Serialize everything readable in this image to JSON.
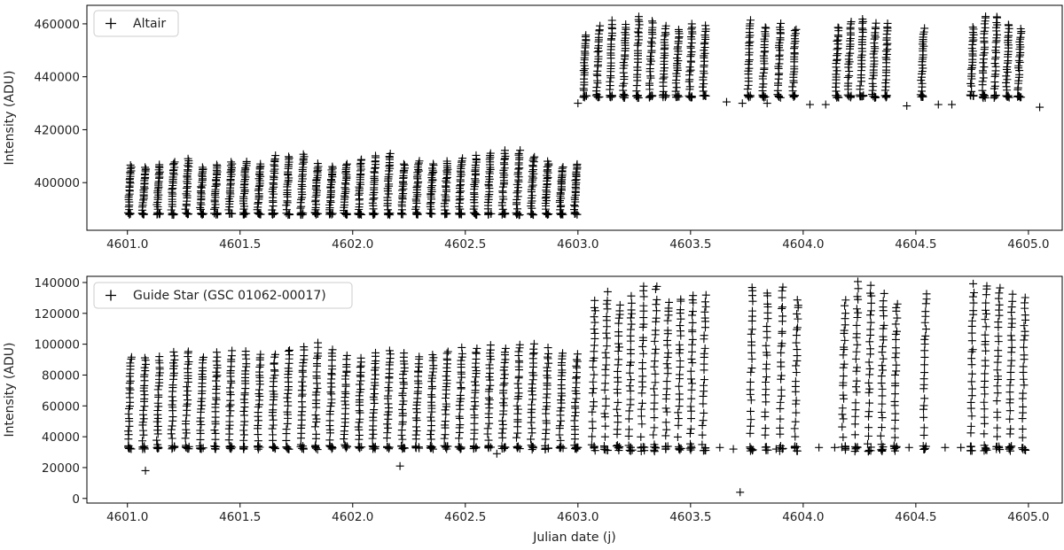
{
  "figure": {
    "background": "#ffffff",
    "marker_color": "#000000"
  },
  "chart_data": [
    {
      "type": "scatter",
      "marker": "+",
      "title": "",
      "xlabel": "",
      "ylabel": "Intensity (ADU)",
      "xlim": [
        4600.82,
        4605.15
      ],
      "ylim": [
        382000,
        467000
      ],
      "xticks": [
        4601.0,
        4601.5,
        4602.0,
        4602.5,
        4603.0,
        4603.5,
        4604.0,
        4604.5,
        4605.0
      ],
      "xtick_labels": [
        "4601.0",
        "4601.5",
        "4602.0",
        "4602.5",
        "4603.0",
        "4603.5",
        "4604.0",
        "4604.5",
        "4605.0"
      ],
      "yticks": [
        400000,
        420000,
        440000,
        460000
      ],
      "ytick_labels": [
        "400000",
        "420000",
        "440000",
        "460000"
      ],
      "legend": {
        "label": "Altair",
        "position": "upper-left"
      },
      "series": [
        {
          "name": "Altair",
          "segments": [
            {
              "start": 4601.01,
              "end": 4602.99,
              "count": 32,
              "base": 388500,
              "peaks": [
                406500,
                406000,
                407000,
                408000,
                409000,
                406000,
                407000,
                408000,
                408000,
                407000,
                410000,
                410000,
                411000,
                407000,
                406000,
                407000,
                409000,
                410000,
                411000,
                407000,
                408000,
                407000,
                408000,
                409000,
                410000,
                411000,
                412000,
                412000,
                410000,
                408000,
                406000,
                407000
              ]
            },
            {
              "start": 4603.03,
              "end": 4603.56,
              "count": 10,
              "base": 433000,
              "peaks": [
                456000,
                459000,
                461000,
                460000,
                463000,
                461000,
                459000,
                458000,
                460000,
                459000
              ]
            },
            {
              "start": 4603.76,
              "end": 4603.96,
              "count": 4,
              "base": 433000,
              "peaks": [
                461000,
                459000,
                460000,
                458000
              ]
            },
            {
              "start": 4604.15,
              "end": 4604.37,
              "count": 5,
              "base": 433000,
              "peaks": [
                459000,
                461000,
                462000,
                460000,
                460000
              ]
            },
            {
              "start": 4604.53,
              "end": 4604.53,
              "count": 1,
              "base": 433000,
              "peaks": [
                458000
              ]
            },
            {
              "start": 4604.75,
              "end": 4604.96,
              "count": 5,
              "base": 433000,
              "peaks": [
                459000,
                463000,
                463000,
                460000,
                458000
              ]
            }
          ],
          "isolated_points": [
            [
              4603.0,
              430000
            ],
            [
              4603.66,
              430500
            ],
            [
              4603.73,
              430000
            ],
            [
              4603.84,
              430000
            ],
            [
              4604.03,
              429500
            ],
            [
              4604.1,
              429500
            ],
            [
              4604.46,
              429000
            ],
            [
              4604.6,
              429500
            ],
            [
              4604.66,
              429500
            ],
            [
              4605.05,
              428500
            ]
          ]
        }
      ]
    },
    {
      "type": "scatter",
      "marker": "+",
      "title": "",
      "xlabel": "Julian date (j)",
      "ylabel": "Intensity (ADU)",
      "xlim": [
        4600.82,
        4605.15
      ],
      "ylim": [
        -3000,
        144000
      ],
      "xticks": [
        4601.0,
        4601.5,
        4602.0,
        4602.5,
        4603.0,
        4603.5,
        4604.0,
        4604.5,
        4605.0
      ],
      "xtick_labels": [
        "4601.0",
        "4601.5",
        "4602.0",
        "4602.5",
        "4603.0",
        "4603.5",
        "4604.0",
        "4604.5",
        "4605.0"
      ],
      "yticks": [
        0,
        20000,
        40000,
        60000,
        80000,
        100000,
        120000,
        140000
      ],
      "ytick_labels": [
        "0",
        "20000",
        "40000",
        "60000",
        "80000",
        "100000",
        "120000",
        "140000"
      ],
      "legend": {
        "label": "Guide Star (GSC 01062-00017)",
        "position": "upper-left"
      },
      "series": [
        {
          "name": "Guide Star (GSC 01062-00017)",
          "segments": [
            {
              "start": 4601.01,
              "end": 4602.99,
              "count": 32,
              "base": 34000,
              "peaks": [
                92000,
                91000,
                92000,
                95000,
                96000,
                92000,
                94000,
                95000,
                95000,
                94000,
                93000,
                97000,
                98000,
                100000,
                96000,
                92000,
                91000,
                94000,
                96000,
                94000,
                92000,
                93000,
                96000,
                97000,
                98000,
                99000,
                97000,
                100000,
                100000,
                97000,
                95000,
                93000
              ]
            },
            {
              "start": 4603.07,
              "end": 4603.56,
              "count": 10,
              "base": 34000,
              "peaks": [
                128000,
                133000,
                126000,
                130000,
                137000,
                138000,
                128000,
                130000,
                133000,
                132000
              ]
            },
            {
              "start": 4603.77,
              "end": 4603.97,
              "count": 4,
              "base": 34000,
              "peaks": [
                138000,
                134000,
                137000,
                130000
              ]
            },
            {
              "start": 4604.18,
              "end": 4604.41,
              "count": 5,
              "base": 34000,
              "peaks": [
                128000,
                140000,
                138000,
                132000,
                127000
              ]
            },
            {
              "start": 4604.54,
              "end": 4604.54,
              "count": 1,
              "base": 34000,
              "peaks": [
                133000
              ]
            },
            {
              "start": 4604.75,
              "end": 4604.98,
              "count": 5,
              "base": 34000,
              "peaks": [
                138000,
                139000,
                137000,
                132000,
                131000
              ]
            }
          ],
          "isolated_points": [
            [
              4601.08,
              18000
            ],
            [
              4602.21,
              21000
            ],
            [
              4602.64,
              29000
            ],
            [
              4603.0,
              33000
            ],
            [
              4603.63,
              33000
            ],
            [
              4603.69,
              32000
            ],
            [
              4603.72,
              4000
            ],
            [
              4603.88,
              32000
            ],
            [
              4604.07,
              33000
            ],
            [
              4604.14,
              33000
            ],
            [
              4604.47,
              33000
            ],
            [
              4604.63,
              33000
            ],
            [
              4604.7,
              33000
            ]
          ]
        }
      ]
    }
  ]
}
